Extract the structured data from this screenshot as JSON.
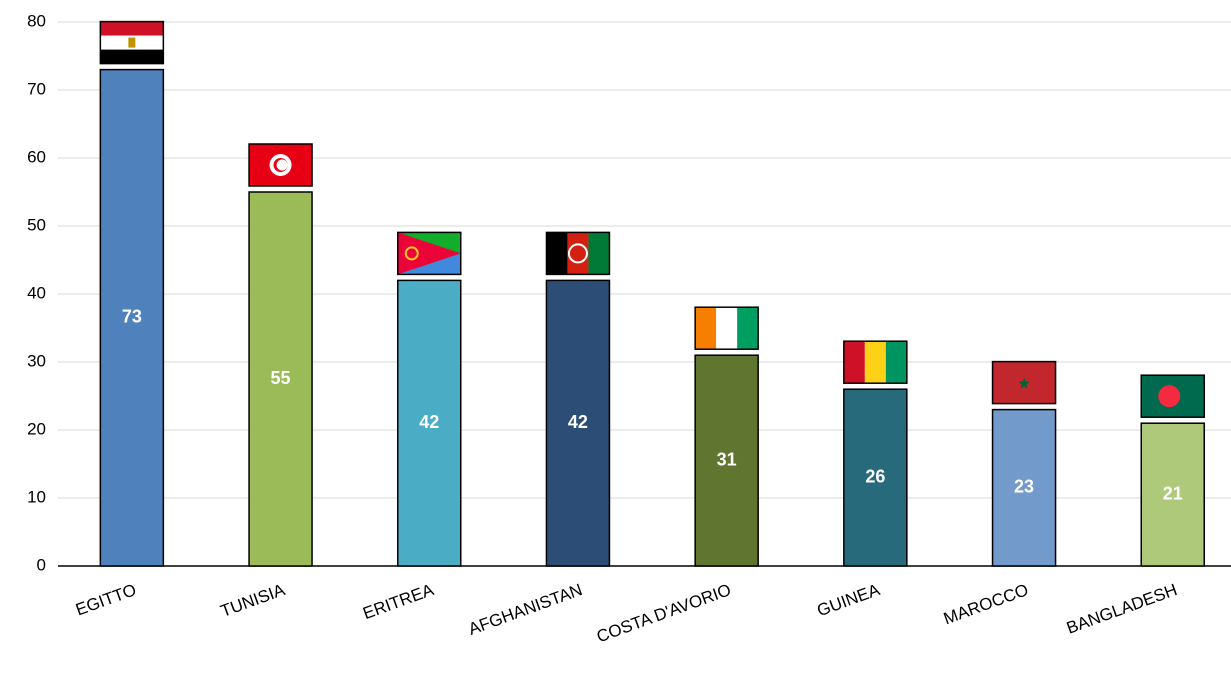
{
  "chart_data": {
    "type": "bar",
    "categories": [
      "EGITTO",
      "TUNISIA",
      "ERITREA",
      "AFGHANISTAN",
      "COSTA D'AVORIO",
      "GUINEA",
      "MAROCCO",
      "BANGLADESH"
    ],
    "values": [
      73,
      55,
      42,
      42,
      31,
      26,
      23,
      21
    ],
    "colors": [
      "#4f81bd",
      "#9bbb59",
      "#4bacc6",
      "#2c4d75",
      "#5f7530",
      "#276a7c",
      "#729aca",
      "#afc97a"
    ],
    "ylim": [
      0,
      80
    ],
    "yticks": [
      0,
      10,
      20,
      30,
      40,
      50,
      60,
      70,
      80
    ],
    "grid": true
  }
}
